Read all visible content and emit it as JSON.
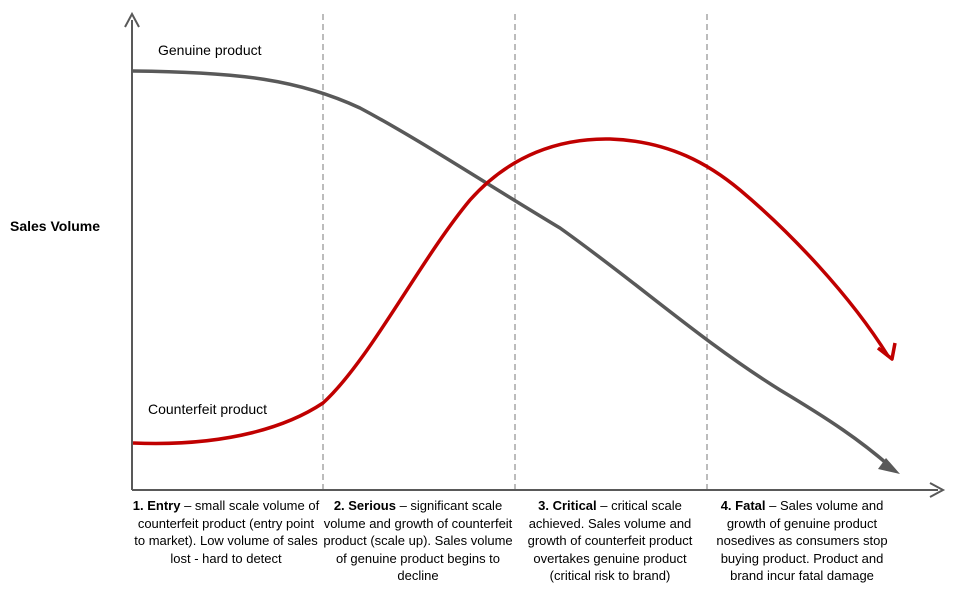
{
  "axes": {
    "y_label": "Sales Volume"
  },
  "series": {
    "genuine": {
      "label": "Genuine product",
      "color": "#595959"
    },
    "counterfeit": {
      "label": "Counterfeit product",
      "color": "#c00000"
    }
  },
  "phases": [
    {
      "title": "1. Entry",
      "text": " – small scale volume of counterfeit product (entry point to market). Low volume of sales lost -  hard to detect"
    },
    {
      "title": "2. Serious",
      "text": " – significant  scale volume and growth of counterfeit product (scale up). Sales volume of genuine product begins to decline"
    },
    {
      "title": "3. Critical",
      "text": " – critical scale achieved. Sales volume and growth of counterfeit product overtakes genuine product (critical risk to brand)"
    },
    {
      "title": "4. Fatal",
      "text": " – Sales volume and growth of genuine product nosedives as consumers stop buying product. Product and brand incur fatal damage"
    }
  ],
  "colors": {
    "axis": "#595959",
    "divider": "#a6a6a6"
  }
}
